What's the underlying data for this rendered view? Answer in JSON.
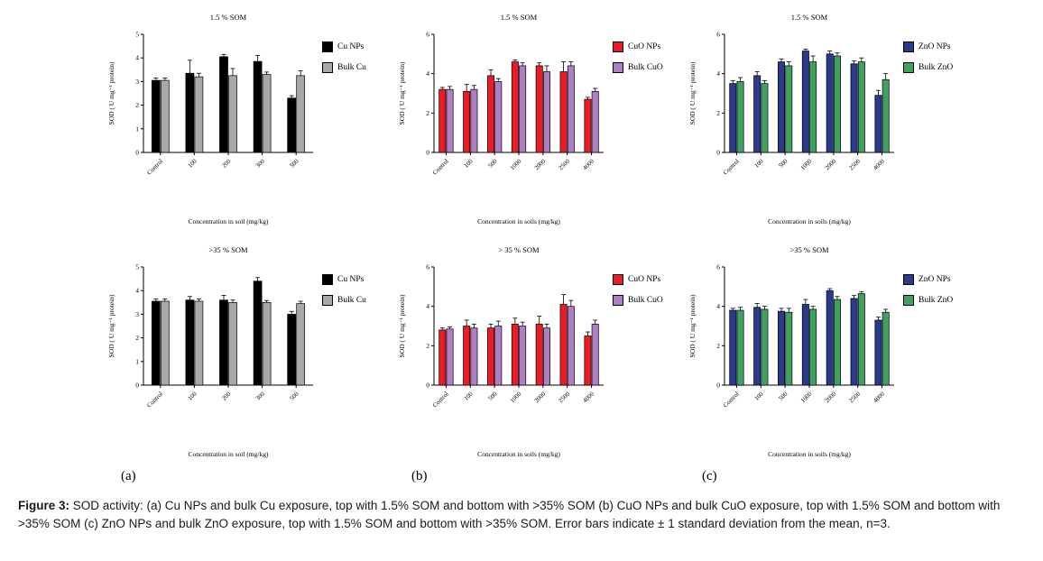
{
  "figure": {
    "panel_letters": [
      "(a)",
      "(b)",
      "(c)"
    ],
    "caption_label": "Figure 3:",
    "caption_text": " SOD activity: (a) Cu NPs and bulk Cu exposure, top with 1.5% SOM and bottom with >35% SOM (b) CuO NPs and bulk CuO exposure, top with 1.5% SOM and bottom with >35% SOM (c) ZnO NPs and bulk ZnO exposure, top with 1.5% SOM and bottom with >35% SOM. Error bars indicate ± 1 standard deviation from the mean, n=3."
  },
  "chart_data": [
    {
      "id": "a-top",
      "type": "bar",
      "title": "1.5 % SOM",
      "ylabel": "SOD ( U mg⁻¹ protein)",
      "xlabel": "Concentration in soil (mg/kg)",
      "ylim": [
        0,
        5
      ],
      "ytick_step": 1,
      "grid": false,
      "legend_position": "right",
      "categories": [
        "Control",
        "100",
        "200",
        "300",
        "500"
      ],
      "series": [
        {
          "name": "Cu NPs",
          "color": "#000000",
          "values": [
            3.05,
            3.35,
            4.05,
            3.85,
            2.3
          ],
          "errors": [
            0.1,
            0.55,
            0.1,
            0.25,
            0.1
          ]
        },
        {
          "name": "Bulk Cu",
          "color": "#a8a8a8",
          "values": [
            3.05,
            3.2,
            3.25,
            3.3,
            3.25
          ],
          "errors": [
            0.1,
            0.15,
            0.3,
            0.1,
            0.2
          ]
        }
      ]
    },
    {
      "id": "b-top",
      "type": "bar",
      "title": "1.5 % SOM",
      "ylabel": "SOD ( U mg⁻¹ protein)",
      "xlabel": "Concentration in soils (mg/kg)",
      "ylim": [
        0,
        6
      ],
      "ytick_step": 2,
      "grid": false,
      "legend_position": "right",
      "categories": [
        "Control",
        "100",
        "500",
        "1000",
        "2000",
        "2500",
        "4000"
      ],
      "series": [
        {
          "name": "CuO NPs",
          "color": "#ed1c24",
          "values": [
            3.2,
            3.1,
            3.9,
            4.6,
            4.4,
            4.1,
            2.7
          ],
          "errors": [
            0.1,
            0.35,
            0.3,
            0.1,
            0.15,
            0.5,
            0.1
          ]
        },
        {
          "name": "Bulk CuO",
          "color": "#af7fc4",
          "values": [
            3.2,
            3.2,
            3.6,
            4.4,
            4.1,
            4.4,
            3.1
          ],
          "errors": [
            0.15,
            0.2,
            0.15,
            0.15,
            0.3,
            0.2,
            0.15
          ]
        }
      ]
    },
    {
      "id": "c-top",
      "type": "bar",
      "title": "1.5 % SOM",
      "ylabel": "SOD ( U mg⁻¹ protein)",
      "xlabel": "Concentration in soils (mg/kg)",
      "ylim": [
        0,
        6
      ],
      "ytick_step": 2,
      "grid": false,
      "legend_position": "right",
      "categories": [
        "Control",
        "100",
        "500",
        "1000",
        "2000",
        "2500",
        "4000"
      ],
      "series": [
        {
          "name": "ZnO NPs",
          "color": "#2b3a8f",
          "values": [
            3.5,
            3.9,
            4.6,
            5.15,
            5.0,
            4.5,
            2.9
          ],
          "errors": [
            0.15,
            0.2,
            0.15,
            0.1,
            0.15,
            0.15,
            0.25
          ]
        },
        {
          "name": "Bulk ZnO",
          "color": "#3fa060",
          "values": [
            3.6,
            3.5,
            4.4,
            4.6,
            4.9,
            4.6,
            3.7
          ],
          "errors": [
            0.2,
            0.15,
            0.2,
            0.3,
            0.15,
            0.2,
            0.3
          ]
        }
      ]
    },
    {
      "id": "a-bottom",
      "type": "bar",
      "title": ">35 % SOM",
      "ylabel": "SOD ( U mg⁻¹ protein)",
      "xlabel": "Concentration in soil (mg/kg)",
      "ylim": [
        0,
        5
      ],
      "ytick_step": 1,
      "grid": false,
      "legend_position": "right",
      "categories": [
        "Control",
        "100",
        "200",
        "300",
        "500"
      ],
      "series": [
        {
          "name": "Cu NPs",
          "color": "#000000",
          "values": [
            3.55,
            3.6,
            3.6,
            4.4,
            3.0
          ],
          "errors": [
            0.1,
            0.15,
            0.2,
            0.15,
            0.12
          ]
        },
        {
          "name": "Bulk Cu",
          "color": "#a8a8a8",
          "values": [
            3.55,
            3.55,
            3.5,
            3.5,
            3.45
          ],
          "errors": [
            0.1,
            0.1,
            0.1,
            0.08,
            0.1
          ]
        }
      ]
    },
    {
      "id": "b-bottom",
      "type": "bar",
      "title": "> 35 % SOM",
      "ylabel": "SOD ( U mg⁻¹ protein)",
      "xlabel": "Concentration in soils (mg/kg)",
      "ylim": [
        0,
        6
      ],
      "ytick_step": 2,
      "grid": false,
      "legend_position": "right",
      "categories": [
        "Control",
        "100",
        "500",
        "1000",
        "2000",
        "2500",
        "4000"
      ],
      "series": [
        {
          "name": "CuO NPs",
          "color": "#ed1c24",
          "values": [
            2.8,
            3.0,
            2.9,
            3.1,
            3.1,
            4.1,
            2.5
          ],
          "errors": [
            0.1,
            0.3,
            0.2,
            0.3,
            0.4,
            0.5,
            0.2
          ]
        },
        {
          "name": "Bulk CuO",
          "color": "#af7fc4",
          "values": [
            2.85,
            2.9,
            3.0,
            3.0,
            2.9,
            4.0,
            3.1
          ],
          "errors": [
            0.1,
            0.2,
            0.25,
            0.2,
            0.2,
            0.3,
            0.2
          ]
        }
      ]
    },
    {
      "id": "c-bottom",
      "type": "bar",
      "title": ">35 % SOM",
      "ylabel": "SOD ( U mg⁻¹ protein)",
      "xlabel": "Concentration in soils (mg/kg)",
      "ylim": [
        0,
        6
      ],
      "ytick_step": 2,
      "grid": false,
      "legend_position": "right",
      "categories": [
        "Control",
        "100",
        "500",
        "1000",
        "2000",
        "2500",
        "4000"
      ],
      "series": [
        {
          "name": "ZnO NPs",
          "color": "#2b3a8f",
          "values": [
            3.8,
            3.95,
            3.75,
            4.1,
            4.8,
            4.4,
            3.3
          ],
          "errors": [
            0.1,
            0.2,
            0.15,
            0.25,
            0.1,
            0.15,
            0.15
          ]
        },
        {
          "name": "Bulk ZnO",
          "color": "#3fa060",
          "values": [
            3.8,
            3.85,
            3.7,
            3.85,
            4.35,
            4.65,
            3.7
          ],
          "errors": [
            0.15,
            0.15,
            0.2,
            0.15,
            0.15,
            0.1,
            0.15
          ]
        }
      ]
    }
  ]
}
